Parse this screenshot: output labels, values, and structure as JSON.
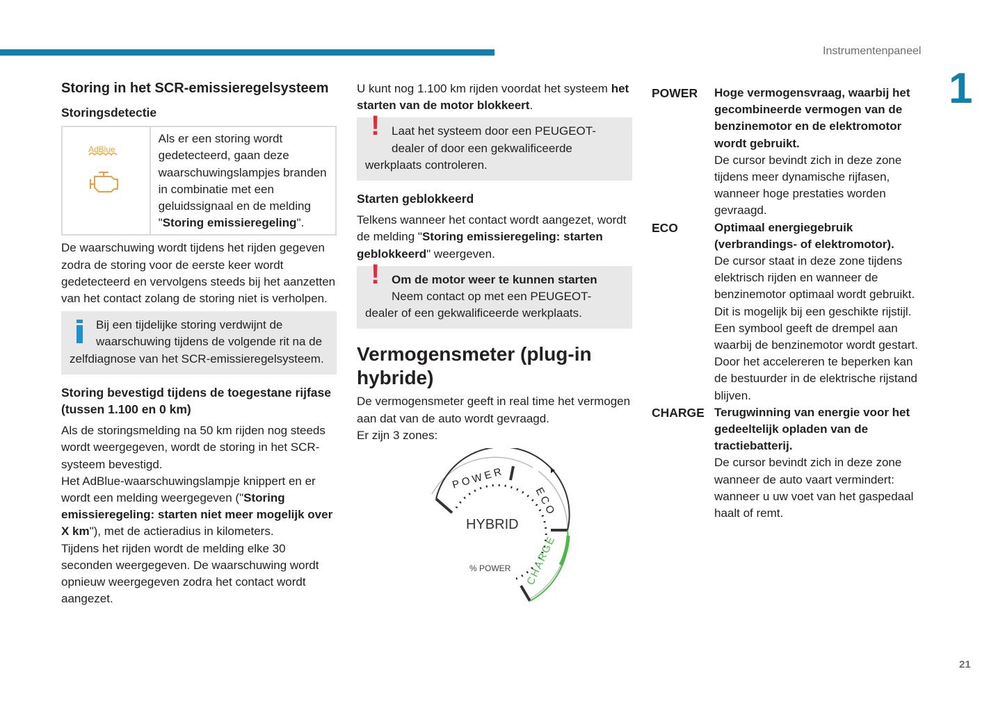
{
  "header": {
    "running_title": "Instrumentenpaneel",
    "chapter": "1",
    "page": "21",
    "accent": "#1280ad"
  },
  "col1": {
    "title": "Storing in het SCR-emissieregelsysteem",
    "sub1": "Storingsdetectie",
    "icon_box": {
      "adblue_label": "AdBlue",
      "text": "Als er een storing wordt gedetecteerd, gaan deze waarschuwingslampjes branden in combinatie met een geluidssignaal en de melding \"",
      "bold": "Storing emissieregeling",
      "end": "\"."
    },
    "para1": "De waarschuwing wordt tijdens het rijden gegeven zodra de storing voor de eerste keer wordt gedetecteerd en vervolgens steeds bij het aanzetten van het contact zolang de storing niet is verholpen.",
    "info": "Bij een tijdelijke storing verdwijnt de waarschuwing tijdens de volgende rit na de zelfdiagnose van het SCR-emissieregelsysteem.",
    "sub2": "Storing bevestigd tijdens de toegestane rijfase (tussen 1.100 en 0 km)",
    "para2a": "Als de storingsmelding na 50 km rijden nog steeds wordt weergegeven, wordt de storing in het SCR-systeem bevestigd.",
    "para2b": "Het AdBlue-waarschuwingslampje knippert en er wordt een melding weergegeven (\"",
    "para2b_bold": "Storing emissieregeling: starten niet meer mogelijk over X km",
    "para2b_end": "\"), met de actieradius in kilometers.",
    "para2c": "Tijdens het rijden wordt de melding elke 30 seconden weergegeven. De waarschuwing wordt opnieuw weergegeven zodra het contact wordt aangezet."
  },
  "col2": {
    "para1": "U kunt nog 1.100 km rijden voordat het systeem ",
    "para1_bold": "het starten van de motor blokkeert",
    "para1_end": ".",
    "warn1": "Laat het systeem door een PEUGEOT-dealer of door een gekwalificeerde werkplaats controleren.",
    "sub1": "Starten geblokkeerd",
    "para2": "Telkens wanneer het contact wordt aangezet, wordt de melding \"",
    "para2_bold": "Storing emissieregeling: starten geblokkeerd",
    "para2_end": "\" weergeven.",
    "warn2_bold": "Om de motor weer te kunnen starten",
    "warn2": "Neem contact op met een PEUGEOT-dealer of een gekwalificeerde werkplaats.",
    "title": "Vermogensmeter (plug-in hybride)",
    "para3": "De vermogensmeter geeft in real time het vermogen aan dat van de auto wordt gevraagd.",
    "para4": "Er zijn 3 zones:",
    "gauge": {
      "power": "POWER",
      "eco": "ECO",
      "charge": "CHARGE",
      "center": "HYBRID",
      "unit": "% POWER",
      "charge_color": "#4cb848"
    }
  },
  "col3": {
    "items": [
      {
        "term": "POWER",
        "head": "Hoge vermogensvraag, waarbij het gecombineerde vermogen van de benzinemotor en de elektromotor wordt gebruikt.",
        "body": "De cursor bevindt zich in deze zone tijdens meer dynamische rijfasen, wanneer hoge prestaties worden gevraagd."
      },
      {
        "term": "ECO",
        "head": "Optimaal energiegebruik (verbrandings- of elektromotor).",
        "body": "De cursor staat in deze zone tijdens elektrisch rijden en wanneer de benzinemotor optimaal wordt gebruikt. Dit is mogelijk bij een geschikte rijstijl. Een symbool geeft de drempel aan waarbij de benzinemotor wordt gestart. Door het accelereren te beperken kan de bestuurder in de elektrische rijstand blijven."
      },
      {
        "term": "CHARGE",
        "head": "Terugwinning van energie voor het gedeeltelijk opladen van de tractiebatterij.",
        "body": "De cursor bevindt zich in deze zone wanneer de auto vaart vermindert: wanneer u uw voet van het gaspedaal haalt of remt."
      }
    ]
  }
}
